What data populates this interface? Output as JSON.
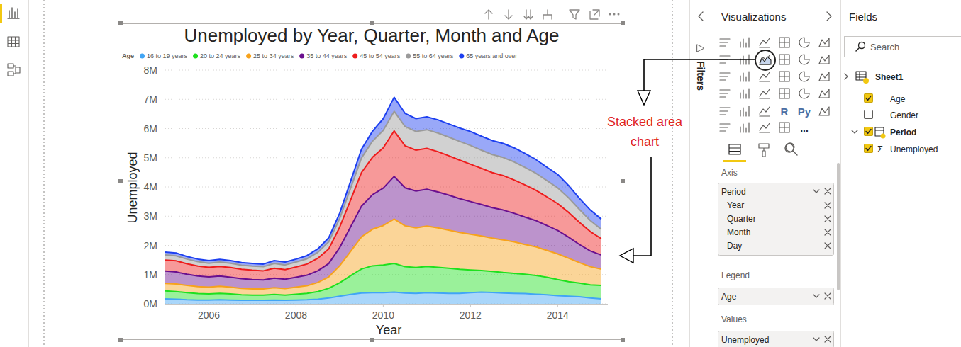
{
  "chart_data": {
    "type": "area",
    "title": "Unemployed by Year, Quarter, Month and Age",
    "legend_title": "Age",
    "x_label": "Year",
    "y_label": "Unemployed",
    "stacked": true,
    "grid": true,
    "legend": "top-left",
    "x": [
      2005,
      2005.25,
      2005.5,
      2005.75,
      2006,
      2006.25,
      2006.5,
      2006.75,
      2007,
      2007.25,
      2007.5,
      2007.75,
      2008,
      2008.25,
      2008.5,
      2008.75,
      2009,
      2009.25,
      2009.5,
      2009.75,
      2010,
      2010.25,
      2010.5,
      2010.75,
      2011,
      2011.25,
      2011.5,
      2011.75,
      2012,
      2012.25,
      2012.5,
      2012.75,
      2013,
      2013.25,
      2013.5,
      2013.75,
      2014,
      2014.25,
      2014.5,
      2014.75,
      2015
    ],
    "xlim": [
      2005,
      2015.15
    ],
    "xticks": [
      2006,
      2008,
      2010,
      2012,
      2014
    ],
    "ylim": [
      0,
      8
    ],
    "yticks": [
      {
        "value": 0,
        "label": "0M"
      },
      {
        "value": 1,
        "label": "1M"
      },
      {
        "value": 2,
        "label": "2M"
      },
      {
        "value": 3,
        "label": "3M"
      },
      {
        "value": 4,
        "label": "4M"
      },
      {
        "value": 5,
        "label": "5M"
      },
      {
        "value": 6,
        "label": "6M"
      },
      {
        "value": 7,
        "label": "7M"
      },
      {
        "value": 8,
        "label": "8M"
      }
    ],
    "series": [
      {
        "name": "16 to 19 years",
        "color": "#41a5f5",
        "values": [
          0.17,
          0.16,
          0.14,
          0.13,
          0.13,
          0.14,
          0.13,
          0.12,
          0.12,
          0.12,
          0.13,
          0.12,
          0.13,
          0.14,
          0.16,
          0.2,
          0.26,
          0.32,
          0.37,
          0.38,
          0.38,
          0.4,
          0.37,
          0.36,
          0.38,
          0.37,
          0.36,
          0.36,
          0.38,
          0.4,
          0.39,
          0.37,
          0.36,
          0.35,
          0.33,
          0.31,
          0.28,
          0.26,
          0.24,
          0.2,
          0.17
        ]
      },
      {
        "name": "20 to 24 years",
        "color": "#1ee01e",
        "values": [
          0.27,
          0.26,
          0.24,
          0.22,
          0.21,
          0.22,
          0.21,
          0.19,
          0.18,
          0.18,
          0.19,
          0.18,
          0.2,
          0.22,
          0.26,
          0.33,
          0.46,
          0.64,
          0.82,
          0.92,
          0.95,
          0.98,
          0.9,
          0.88,
          0.9,
          0.88,
          0.86,
          0.82,
          0.78,
          0.74,
          0.72,
          0.7,
          0.68,
          0.66,
          0.64,
          0.6,
          0.55,
          0.5,
          0.47,
          0.45,
          0.46
        ]
      },
      {
        "name": "25 to 34 years",
        "color": "#f7a21b",
        "values": [
          0.26,
          0.26,
          0.25,
          0.24,
          0.23,
          0.24,
          0.23,
          0.22,
          0.21,
          0.21,
          0.23,
          0.22,
          0.24,
          0.26,
          0.31,
          0.39,
          0.58,
          0.83,
          1.1,
          1.25,
          1.35,
          1.52,
          1.4,
          1.36,
          1.38,
          1.35,
          1.3,
          1.26,
          1.22,
          1.18,
          1.14,
          1.12,
          1.08,
          1.02,
          0.98,
          0.92,
          0.88,
          0.8,
          0.7,
          0.62,
          0.56
        ]
      },
      {
        "name": "35 to 44 years",
        "color": "#6a0f8e",
        "values": [
          0.42,
          0.41,
          0.38,
          0.36,
          0.35,
          0.35,
          0.34,
          0.33,
          0.32,
          0.31,
          0.33,
          0.32,
          0.34,
          0.36,
          0.4,
          0.46,
          0.62,
          0.84,
          1.05,
          1.18,
          1.28,
          1.46,
          1.3,
          1.26,
          1.26,
          1.23,
          1.2,
          1.16,
          1.12,
          1.08,
          1.04,
          1.02,
          0.98,
          0.94,
          0.9,
          0.85,
          0.8,
          0.72,
          0.62,
          0.54,
          0.48
        ]
      },
      {
        "name": "45 to 54 years",
        "color": "#ee1c1c",
        "values": [
          0.38,
          0.38,
          0.36,
          0.34,
          0.33,
          0.33,
          0.33,
          0.32,
          0.32,
          0.31,
          0.34,
          0.33,
          0.35,
          0.38,
          0.43,
          0.5,
          0.7,
          0.92,
          1.15,
          1.28,
          1.38,
          1.56,
          1.44,
          1.4,
          1.4,
          1.38,
          1.35,
          1.32,
          1.28,
          1.24,
          1.2,
          1.18,
          1.14,
          1.1,
          1.04,
          0.98,
          0.92,
          0.85,
          0.76,
          0.66,
          0.56
        ]
      },
      {
        "name": "55 to 64 years",
        "color": "#9a9a9a",
        "values": [
          0.17,
          0.17,
          0.16,
          0.15,
          0.14,
          0.15,
          0.15,
          0.14,
          0.14,
          0.14,
          0.16,
          0.16,
          0.17,
          0.18,
          0.2,
          0.24,
          0.3,
          0.4,
          0.5,
          0.55,
          0.6,
          0.67,
          0.66,
          0.64,
          0.64,
          0.64,
          0.64,
          0.64,
          0.64,
          0.62,
          0.62,
          0.62,
          0.62,
          0.6,
          0.58,
          0.56,
          0.54,
          0.5,
          0.44,
          0.38,
          0.32
        ]
      },
      {
        "name": "65 years and over",
        "color": "#1c3ff0",
        "values": [
          0.1,
          0.1,
          0.09,
          0.09,
          0.09,
          0.09,
          0.09,
          0.09,
          0.09,
          0.09,
          0.1,
          0.1,
          0.1,
          0.11,
          0.12,
          0.14,
          0.18,
          0.24,
          0.3,
          0.34,
          0.4,
          0.48,
          0.45,
          0.44,
          0.44,
          0.45,
          0.45,
          0.46,
          0.48,
          0.48,
          0.48,
          0.48,
          0.48,
          0.48,
          0.47,
          0.46,
          0.46,
          0.42,
          0.38,
          0.36,
          0.35
        ]
      }
    ]
  },
  "ui": {
    "filters_label": "Filters",
    "visualizations": {
      "title": "Visualizations",
      "icon_labels": [
        "R",
        "Py",
        "..."
      ],
      "wells": [
        {
          "label": "Axis",
          "field": "Period",
          "items": [
            "Year",
            "Quarter",
            "Month",
            "Day"
          ]
        },
        {
          "label": "Legend",
          "field": "Age"
        },
        {
          "label": "Values",
          "field": "Unemployed"
        }
      ]
    },
    "fields": {
      "title": "Fields",
      "search": "Search",
      "table": "Sheet1",
      "items": [
        {
          "name": "Age",
          "checked": true
        },
        {
          "name": "Gender",
          "checked": false
        },
        {
          "name": "Period",
          "checked": true,
          "hierarchy": true
        },
        {
          "name": "Unemployed",
          "checked": true,
          "icon": "Σ"
        }
      ]
    },
    "annotation": [
      "Stacked area",
      "chart"
    ]
  }
}
